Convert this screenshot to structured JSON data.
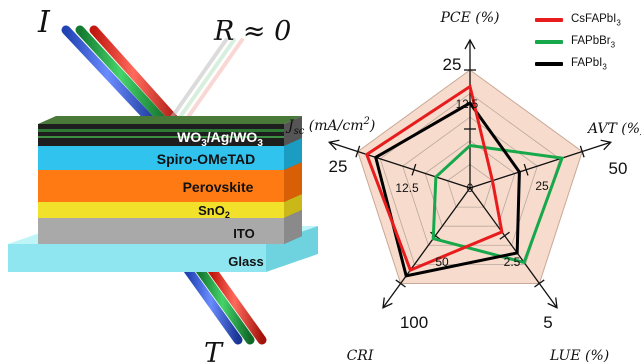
{
  "beam_labels": {
    "incident": "I",
    "reflected": "R ≈ 0",
    "transmitted": "T"
  },
  "layers": [
    {
      "label": "WO",
      "sub": "3",
      "mid": "/Ag/WO",
      "sub2": "3",
      "color": "#1e1e1e"
    },
    {
      "label": "Spiro-OMeTAD",
      "color": "#2fc3ee"
    },
    {
      "label": "Perovskite",
      "color": "#ff7a12"
    },
    {
      "label": "SnO",
      "sub": "2",
      "color": "#f2e12a"
    },
    {
      "label": "ITO",
      "color": "#a9a9a9"
    },
    {
      "label": "Glass",
      "color": "#8fe6f0"
    }
  ],
  "beam_colors": {
    "red": "#ff3b2f",
    "green": "#22aa44",
    "blue": "#3a62e6"
  },
  "chart_data": {
    "type": "radar",
    "axes": [
      {
        "key": "PCE",
        "label": "PCE (%)",
        "ticks": [
          "0",
          "12.5",
          "25"
        ],
        "max": 25
      },
      {
        "key": "AVT",
        "label": "AVT (%)",
        "ticks": [
          "25",
          "50"
        ],
        "max": 50
      },
      {
        "key": "LUE",
        "label": "LUE (%)",
        "ticks": [
          "2.5",
          "5"
        ],
        "max": 5
      },
      {
        "key": "CRI",
        "label": "CRI",
        "ticks": [
          "50",
          "100"
        ],
        "max": 100
      },
      {
        "key": "Jsc",
        "label": "Jsc (mA/cm2)",
        "ticks": [
          "12.5",
          "25"
        ],
        "max": 25
      }
    ],
    "axis_label_text": {
      "PCE": "PCE (%)",
      "AVT": "AVT (%)",
      "LUE": "LUE (%)",
      "CRI": "CRI",
      "Jsc_main": "J",
      "Jsc_sub": "sc",
      "Jsc_unit": " (mA/cm",
      "Jsc_sup": "2",
      "Jsc_close": ")"
    },
    "series": [
      {
        "name": "CsFAPbI3",
        "name_base": "CsFAPbI",
        "name_sub": "3",
        "color": "#e81c1c",
        "values": {
          "PCE": 21.5,
          "AVT": 10,
          "LUE": 2.3,
          "CRI": 86,
          "Jsc": 23
        }
      },
      {
        "name": "FAPbBr3",
        "name_base": "FAPbBr",
        "name_sub": "3",
        "color": "#16a84a",
        "values": {
          "PCE": 9,
          "AVT": 41,
          "LUE": 3.9,
          "CRI": 53,
          "Jsc": 7.6
        }
      },
      {
        "name": "FAPbI3",
        "name_base": "FAPbI",
        "name_sub": "3",
        "color": "#000000",
        "values": {
          "PCE": 18,
          "AVT": 22,
          "LUE": 3.4,
          "CRI": 92,
          "Jsc": 21
        }
      }
    ],
    "grid_levels": 5,
    "grid_fill": "#f7dccd",
    "legend_position": "top-right"
  }
}
